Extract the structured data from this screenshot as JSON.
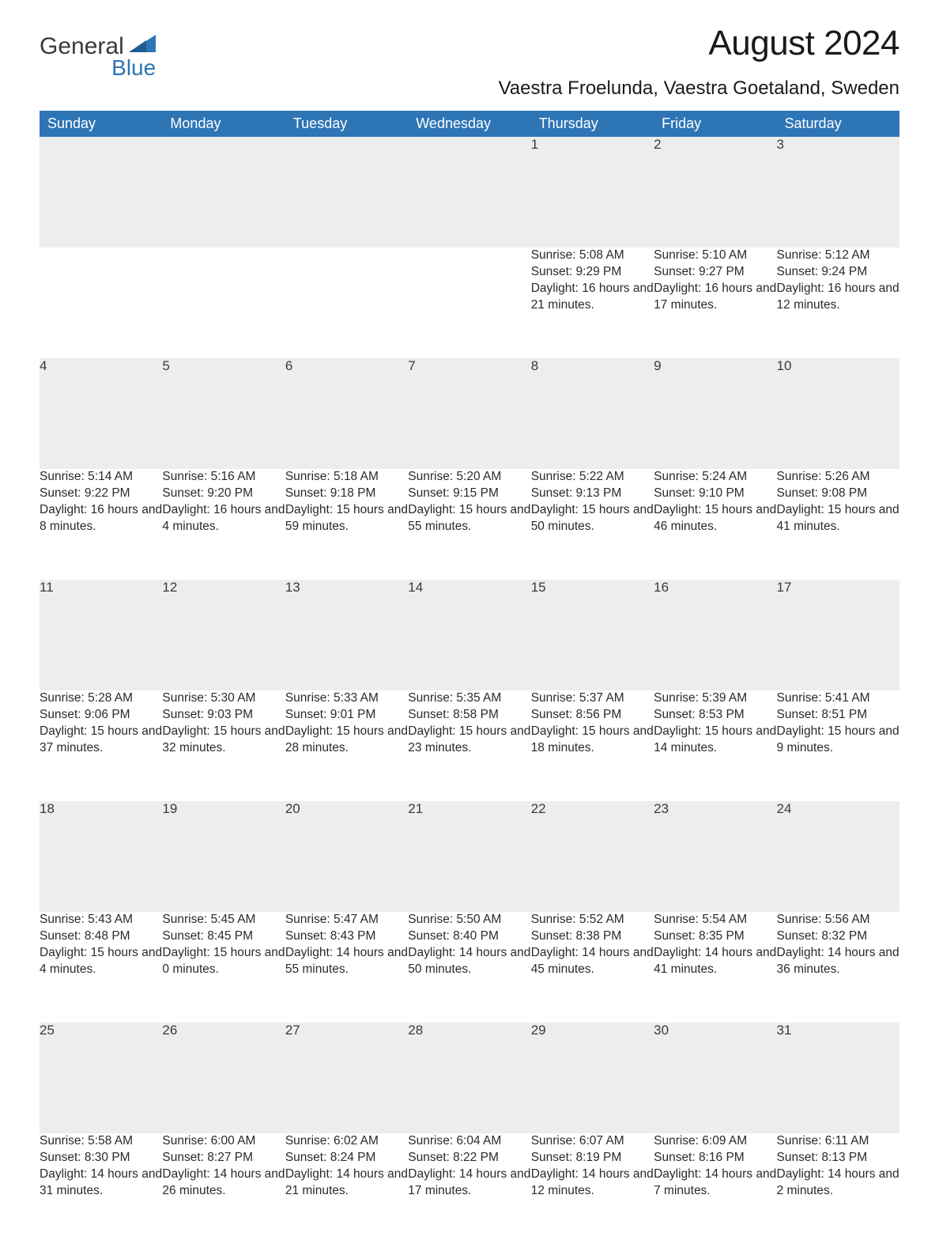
{
  "logo": {
    "word1": "General",
    "word2": "Blue"
  },
  "title": "August 2024",
  "location": "Vaestra Froelunda, Vaestra Goetaland, Sweden",
  "colors": {
    "header_bg": "#2e75b6",
    "header_text": "#ffffff",
    "daynum_bg": "#ededed",
    "daynum_border": "#2e75b6",
    "body_text": "#2a2a2a",
    "logo_blue": "#2e75b6"
  },
  "weekdays": [
    "Sunday",
    "Monday",
    "Tuesday",
    "Wednesday",
    "Thursday",
    "Friday",
    "Saturday"
  ],
  "weeks": [
    [
      null,
      null,
      null,
      null,
      {
        "n": "1",
        "sunrise": "Sunrise: 5:08 AM",
        "sunset": "Sunset: 9:29 PM",
        "daylight": "Daylight: 16 hours and 21 minutes."
      },
      {
        "n": "2",
        "sunrise": "Sunrise: 5:10 AM",
        "sunset": "Sunset: 9:27 PM",
        "daylight": "Daylight: 16 hours and 17 minutes."
      },
      {
        "n": "3",
        "sunrise": "Sunrise: 5:12 AM",
        "sunset": "Sunset: 9:24 PM",
        "daylight": "Daylight: 16 hours and 12 minutes."
      }
    ],
    [
      {
        "n": "4",
        "sunrise": "Sunrise: 5:14 AM",
        "sunset": "Sunset: 9:22 PM",
        "daylight": "Daylight: 16 hours and 8 minutes."
      },
      {
        "n": "5",
        "sunrise": "Sunrise: 5:16 AM",
        "sunset": "Sunset: 9:20 PM",
        "daylight": "Daylight: 16 hours and 4 minutes."
      },
      {
        "n": "6",
        "sunrise": "Sunrise: 5:18 AM",
        "sunset": "Sunset: 9:18 PM",
        "daylight": "Daylight: 15 hours and 59 minutes."
      },
      {
        "n": "7",
        "sunrise": "Sunrise: 5:20 AM",
        "sunset": "Sunset: 9:15 PM",
        "daylight": "Daylight: 15 hours and 55 minutes."
      },
      {
        "n": "8",
        "sunrise": "Sunrise: 5:22 AM",
        "sunset": "Sunset: 9:13 PM",
        "daylight": "Daylight: 15 hours and 50 minutes."
      },
      {
        "n": "9",
        "sunrise": "Sunrise: 5:24 AM",
        "sunset": "Sunset: 9:10 PM",
        "daylight": "Daylight: 15 hours and 46 minutes."
      },
      {
        "n": "10",
        "sunrise": "Sunrise: 5:26 AM",
        "sunset": "Sunset: 9:08 PM",
        "daylight": "Daylight: 15 hours and 41 minutes."
      }
    ],
    [
      {
        "n": "11",
        "sunrise": "Sunrise: 5:28 AM",
        "sunset": "Sunset: 9:06 PM",
        "daylight": "Daylight: 15 hours and 37 minutes."
      },
      {
        "n": "12",
        "sunrise": "Sunrise: 5:30 AM",
        "sunset": "Sunset: 9:03 PM",
        "daylight": "Daylight: 15 hours and 32 minutes."
      },
      {
        "n": "13",
        "sunrise": "Sunrise: 5:33 AM",
        "sunset": "Sunset: 9:01 PM",
        "daylight": "Daylight: 15 hours and 28 minutes."
      },
      {
        "n": "14",
        "sunrise": "Sunrise: 5:35 AM",
        "sunset": "Sunset: 8:58 PM",
        "daylight": "Daylight: 15 hours and 23 minutes."
      },
      {
        "n": "15",
        "sunrise": "Sunrise: 5:37 AM",
        "sunset": "Sunset: 8:56 PM",
        "daylight": "Daylight: 15 hours and 18 minutes."
      },
      {
        "n": "16",
        "sunrise": "Sunrise: 5:39 AM",
        "sunset": "Sunset: 8:53 PM",
        "daylight": "Daylight: 15 hours and 14 minutes."
      },
      {
        "n": "17",
        "sunrise": "Sunrise: 5:41 AM",
        "sunset": "Sunset: 8:51 PM",
        "daylight": "Daylight: 15 hours and 9 minutes."
      }
    ],
    [
      {
        "n": "18",
        "sunrise": "Sunrise: 5:43 AM",
        "sunset": "Sunset: 8:48 PM",
        "daylight": "Daylight: 15 hours and 4 minutes."
      },
      {
        "n": "19",
        "sunrise": "Sunrise: 5:45 AM",
        "sunset": "Sunset: 8:45 PM",
        "daylight": "Daylight: 15 hours and 0 minutes."
      },
      {
        "n": "20",
        "sunrise": "Sunrise: 5:47 AM",
        "sunset": "Sunset: 8:43 PM",
        "daylight": "Daylight: 14 hours and 55 minutes."
      },
      {
        "n": "21",
        "sunrise": "Sunrise: 5:50 AM",
        "sunset": "Sunset: 8:40 PM",
        "daylight": "Daylight: 14 hours and 50 minutes."
      },
      {
        "n": "22",
        "sunrise": "Sunrise: 5:52 AM",
        "sunset": "Sunset: 8:38 PM",
        "daylight": "Daylight: 14 hours and 45 minutes."
      },
      {
        "n": "23",
        "sunrise": "Sunrise: 5:54 AM",
        "sunset": "Sunset: 8:35 PM",
        "daylight": "Daylight: 14 hours and 41 minutes."
      },
      {
        "n": "24",
        "sunrise": "Sunrise: 5:56 AM",
        "sunset": "Sunset: 8:32 PM",
        "daylight": "Daylight: 14 hours and 36 minutes."
      }
    ],
    [
      {
        "n": "25",
        "sunrise": "Sunrise: 5:58 AM",
        "sunset": "Sunset: 8:30 PM",
        "daylight": "Daylight: 14 hours and 31 minutes."
      },
      {
        "n": "26",
        "sunrise": "Sunrise: 6:00 AM",
        "sunset": "Sunset: 8:27 PM",
        "daylight": "Daylight: 14 hours and 26 minutes."
      },
      {
        "n": "27",
        "sunrise": "Sunrise: 6:02 AM",
        "sunset": "Sunset: 8:24 PM",
        "daylight": "Daylight: 14 hours and 21 minutes."
      },
      {
        "n": "28",
        "sunrise": "Sunrise: 6:04 AM",
        "sunset": "Sunset: 8:22 PM",
        "daylight": "Daylight: 14 hours and 17 minutes."
      },
      {
        "n": "29",
        "sunrise": "Sunrise: 6:07 AM",
        "sunset": "Sunset: 8:19 PM",
        "daylight": "Daylight: 14 hours and 12 minutes."
      },
      {
        "n": "30",
        "sunrise": "Sunrise: 6:09 AM",
        "sunset": "Sunset: 8:16 PM",
        "daylight": "Daylight: 14 hours and 7 minutes."
      },
      {
        "n": "31",
        "sunrise": "Sunrise: 6:11 AM",
        "sunset": "Sunset: 8:13 PM",
        "daylight": "Daylight: 14 hours and 2 minutes."
      }
    ]
  ]
}
